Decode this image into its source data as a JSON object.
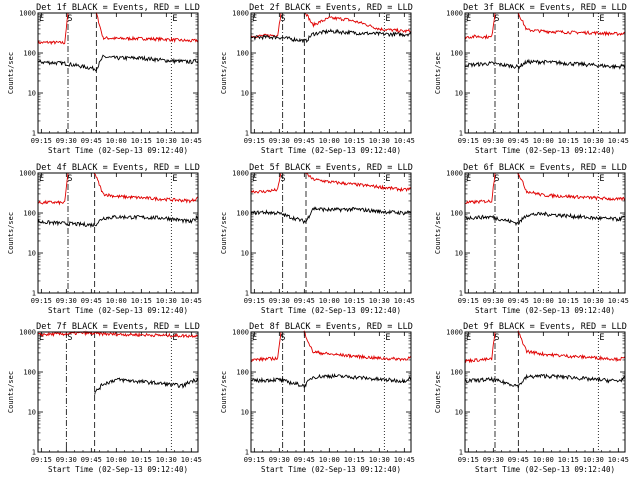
{
  "colors": {
    "background": "#ffffff",
    "axes": "#000000",
    "events": "#000000",
    "lld": "#e00000"
  },
  "chart_data": [
    {
      "type": "line",
      "title": "Det 1f BLACK = Events, RED = LLD",
      "xlabel": "Start Time (02-Sep-13 09:12:40)",
      "ylabel": "Counts/sec",
      "y_scale": "log",
      "ylim": [
        1,
        1000
      ],
      "yticks": [
        1,
        10,
        100,
        1000
      ],
      "xticks": [
        "09:15",
        "09:30",
        "09:45",
        "10:00",
        "10:15",
        "10:30",
        "10:45"
      ],
      "markers": [
        {
          "label": "E",
          "time": "09:13"
        },
        {
          "label": "S",
          "time": "09:30"
        },
        {
          "label": "E",
          "time": "10:33"
        }
      ],
      "flare_window": [
        "09:31",
        "09:48"
      ],
      "series": [
        {
          "color": "red",
          "x": [
            "09:13",
            "09:20",
            "09:29",
            "09:31",
            "09:48",
            "09:52",
            "10:00",
            "10:15",
            "10:30",
            "10:45",
            "10:49"
          ],
          "values": [
            180,
            185,
            180,
            1000,
            1000,
            240,
            230,
            230,
            220,
            200,
            210
          ]
        },
        {
          "color": "black",
          "x": [
            "09:13",
            "09:20",
            "09:29",
            "09:48",
            "09:52",
            "10:00",
            "10:15",
            "10:30",
            "10:45",
            "10:49"
          ],
          "values": [
            60,
            58,
            55,
            40,
            80,
            75,
            75,
            65,
            60,
            65
          ]
        }
      ]
    },
    {
      "type": "line",
      "title": "Det 2f BLACK = Events, RED = LLD",
      "xlabel": "Start Time (02-Sep-13 09:12:40)",
      "ylabel": "Counts/sec",
      "y_scale": "log",
      "ylim": [
        1,
        1000
      ],
      "yticks": [
        1,
        10,
        100,
        1000
      ],
      "xticks": [
        "09:15",
        "09:30",
        "09:45",
        "10:00",
        "10:15",
        "10:30",
        "10:45"
      ],
      "markers": [
        {
          "label": "E",
          "time": "09:13"
        },
        {
          "label": "S",
          "time": "09:30"
        },
        {
          "label": "E",
          "time": "10:33"
        }
      ],
      "flare_window": [
        "09:32",
        "09:45"
      ],
      "series": [
        {
          "color": "red",
          "x": [
            "09:13",
            "09:20",
            "09:29",
            "09:31",
            "09:46",
            "09:50",
            "10:00",
            "10:10",
            "10:20",
            "10:30",
            "10:45",
            "10:49"
          ],
          "values": [
            260,
            270,
            280,
            1000,
            1000,
            500,
            750,
            700,
            550,
            400,
            350,
            360
          ]
        },
        {
          "color": "black",
          "x": [
            "09:13",
            "09:20",
            "09:29",
            "09:46",
            "09:50",
            "10:00",
            "10:15",
            "10:30",
            "10:45",
            "10:49"
          ],
          "values": [
            240,
            250,
            250,
            200,
            300,
            350,
            320,
            300,
            290,
            310
          ]
        }
      ]
    },
    {
      "type": "line",
      "title": "Det 3f BLACK = Events, RED = LLD",
      "xlabel": "Start Time (02-Sep-13 09:12:40)",
      "ylabel": "Counts/sec",
      "y_scale": "log",
      "ylim": [
        1,
        1000
      ],
      "yticks": [
        1,
        10,
        100,
        1000
      ],
      "xticks": [
        "09:15",
        "09:30",
        "09:45",
        "10:00",
        "10:15",
        "10:30",
        "10:45"
      ],
      "markers": [
        {
          "label": "E",
          "time": "09:13"
        },
        {
          "label": "S",
          "time": "09:30"
        },
        {
          "label": "E",
          "time": "10:33"
        }
      ],
      "flare_window": [
        "09:31",
        "09:45"
      ],
      "series": [
        {
          "color": "red",
          "x": [
            "09:13",
            "09:20",
            "09:29",
            "09:31",
            "09:45",
            "09:50",
            "10:00",
            "10:15",
            "10:30",
            "10:45",
            "10:49"
          ],
          "values": [
            250,
            260,
            250,
            1000,
            1000,
            380,
            350,
            330,
            320,
            300,
            310
          ]
        },
        {
          "color": "black",
          "x": [
            "09:13",
            "09:20",
            "09:29",
            "09:45",
            "09:50",
            "10:00",
            "10:15",
            "10:30",
            "10:45",
            "10:49"
          ],
          "values": [
            50,
            52,
            55,
            45,
            60,
            60,
            55,
            50,
            45,
            50
          ]
        }
      ]
    },
    {
      "type": "line",
      "title": "Det 4f BLACK = Events, RED = LLD",
      "xlabel": "Start Time (02-Sep-13 09:12:40)",
      "ylabel": "Counts/sec",
      "y_scale": "log",
      "ylim": [
        1,
        1000
      ],
      "yticks": [
        1,
        10,
        100,
        1000
      ],
      "xticks": [
        "09:15",
        "09:30",
        "09:45",
        "10:00",
        "10:15",
        "10:30",
        "10:45"
      ],
      "markers": [
        {
          "label": "E",
          "time": "09:13"
        },
        {
          "label": "S",
          "time": "09:30"
        },
        {
          "label": "E",
          "time": "10:33"
        }
      ],
      "flare_window": [
        "09:31",
        "09:47"
      ],
      "series": [
        {
          "color": "red",
          "x": [
            "09:13",
            "09:20",
            "09:29",
            "09:31",
            "09:47",
            "09:52",
            "10:00",
            "10:15",
            "10:30",
            "10:45",
            "10:49"
          ],
          "values": [
            180,
            185,
            180,
            1000,
            1000,
            300,
            260,
            240,
            220,
            200,
            240
          ]
        },
        {
          "color": "black",
          "x": [
            "09:13",
            "09:20",
            "09:29",
            "09:47",
            "09:52",
            "10:00",
            "10:15",
            "10:30",
            "10:45",
            "10:49"
          ],
          "values": [
            60,
            58,
            55,
            50,
            75,
            80,
            78,
            75,
            60,
            80
          ]
        }
      ]
    },
    {
      "type": "line",
      "title": "Det 5f BLACK = Events, RED = LLD",
      "xlabel": "Start Time (02-Sep-13 09:12:40)",
      "ylabel": "Counts/sec",
      "y_scale": "log",
      "ylim": [
        1,
        1000
      ],
      "yticks": [
        1,
        10,
        100,
        1000
      ],
      "xticks": [
        "09:15",
        "09:30",
        "09:45",
        "10:00",
        "10:15",
        "10:30",
        "10:45"
      ],
      "markers": [
        {
          "label": "E",
          "time": "09:13"
        },
        {
          "label": "S",
          "time": "09:30"
        },
        {
          "label": "E",
          "time": "10:33"
        }
      ],
      "flare_window": [
        "09:32",
        "09:46"
      ],
      "series": [
        {
          "color": "red",
          "x": [
            "09:13",
            "09:20",
            "09:29",
            "09:31",
            "09:46",
            "09:50",
            "10:00",
            "10:15",
            "10:30",
            "10:45",
            "10:49"
          ],
          "values": [
            350,
            340,
            380,
            1000,
            1000,
            700,
            600,
            520,
            450,
            380,
            400
          ]
        },
        {
          "color": "black",
          "x": [
            "09:13",
            "09:20",
            "09:29",
            "09:46",
            "09:50",
            "10:00",
            "10:15",
            "10:30",
            "10:45",
            "10:49"
          ],
          "values": [
            100,
            105,
            100,
            60,
            130,
            120,
            125,
            110,
            100,
            110
          ]
        }
      ]
    },
    {
      "type": "line",
      "title": "Det 6f BLACK = Events, RED = LLD",
      "xlabel": "Start Time (02-Sep-13 09:12:40)",
      "ylabel": "Counts/sec",
      "y_scale": "log",
      "ylim": [
        1,
        1000
      ],
      "yticks": [
        1,
        10,
        100,
        1000
      ],
      "xticks": [
        "09:15",
        "09:30",
        "09:45",
        "10:00",
        "10:15",
        "10:30",
        "10:45"
      ],
      "markers": [
        {
          "label": "E",
          "time": "09:13"
        },
        {
          "label": "S",
          "time": "09:30"
        },
        {
          "label": "E",
          "time": "10:33"
        }
      ],
      "flare_window": [
        "09:31",
        "09:45"
      ],
      "series": [
        {
          "color": "red",
          "x": [
            "09:13",
            "09:20",
            "09:29",
            "09:31",
            "09:45",
            "09:50",
            "10:00",
            "10:15",
            "10:30",
            "10:45",
            "10:49"
          ],
          "values": [
            180,
            190,
            200,
            1000,
            1000,
            350,
            280,
            260,
            240,
            220,
            230
          ]
        },
        {
          "color": "black",
          "x": [
            "09:13",
            "09:20",
            "09:29",
            "09:45",
            "09:50",
            "10:00",
            "10:15",
            "10:30",
            "10:45",
            "10:49"
          ],
          "values": [
            75,
            78,
            80,
            55,
            90,
            95,
            85,
            75,
            70,
            80
          ]
        }
      ]
    },
    {
      "type": "line",
      "title": "Det 7f BLACK = Events, RED = LLD",
      "xlabel": "Start Time (02-Sep-13 09:12:40)",
      "ylabel": "Counts/sec",
      "y_scale": "log",
      "ylim": [
        1,
        1000
      ],
      "yticks": [
        1,
        10,
        100,
        1000
      ],
      "xticks": [
        "09:15",
        "09:30",
        "09:45",
        "10:00",
        "10:15",
        "10:30",
        "10:45"
      ],
      "markers": [
        {
          "label": "E",
          "time": "09:13"
        },
        {
          "label": "S",
          "time": "09:30"
        },
        {
          "label": "E",
          "time": "10:33"
        }
      ],
      "flare_window": [
        "09:30",
        "09:47"
      ],
      "series": [
        {
          "color": "red",
          "x": [
            "09:13",
            "09:20",
            "09:30",
            "09:40",
            "09:50",
            "10:00",
            "10:15",
            "10:30",
            "10:45",
            "10:49"
          ],
          "values": [
            850,
            880,
            900,
            950,
            900,
            880,
            850,
            820,
            800,
            830
          ]
        },
        {
          "color": "black",
          "x": [
            "09:13",
            "09:47",
            "09:52",
            "10:00",
            "10:10",
            "10:20",
            "10:30",
            "10:40",
            "10:45",
            "10:49"
          ],
          "values": [
            null,
            30,
            50,
            65,
            60,
            55,
            50,
            45,
            60,
            65
          ]
        }
      ]
    },
    {
      "type": "line",
      "title": "Det 8f BLACK = Events, RED = LLD",
      "xlabel": "Start Time (02-Sep-13 09:12:40)",
      "ylabel": "Counts/sec",
      "y_scale": "log",
      "ylim": [
        1,
        1000
      ],
      "yticks": [
        1,
        10,
        100,
        1000
      ],
      "xticks": [
        "09:15",
        "09:30",
        "09:45",
        "10:00",
        "10:15",
        "10:30",
        "10:45"
      ],
      "markers": [
        {
          "label": "E",
          "time": "09:13"
        },
        {
          "label": "S",
          "time": "09:30"
        },
        {
          "label": "E",
          "time": "10:33"
        }
      ],
      "flare_window": [
        "09:32",
        "09:45"
      ],
      "series": [
        {
          "color": "red",
          "x": [
            "09:13",
            "09:20",
            "09:29",
            "09:31",
            "09:45",
            "09:50",
            "10:00",
            "10:15",
            "10:30",
            "10:45",
            "10:49"
          ],
          "values": [
            200,
            210,
            220,
            1000,
            1000,
            320,
            280,
            250,
            220,
            210,
            230
          ]
        },
        {
          "color": "black",
          "x": [
            "09:13",
            "09:20",
            "09:29",
            "09:45",
            "09:50",
            "10:00",
            "10:15",
            "10:30",
            "10:45",
            "10:49"
          ],
          "values": [
            60,
            62,
            65,
            45,
            75,
            80,
            75,
            65,
            60,
            75
          ]
        }
      ]
    },
    {
      "type": "line",
      "title": "Det 9f BLACK = Events, RED = LLD",
      "xlabel": "Start Time (02-Sep-13 09:12:40)",
      "ylabel": "Counts/sec",
      "y_scale": "log",
      "ylim": [
        1,
        1000
      ],
      "yticks": [
        1,
        10,
        100,
        1000
      ],
      "xticks": [
        "09:15",
        "09:30",
        "09:45",
        "10:00",
        "10:15",
        "10:30",
        "10:45"
      ],
      "markers": [
        {
          "label": "E",
          "time": "09:13"
        },
        {
          "label": "S",
          "time": "09:30"
        },
        {
          "label": "E",
          "time": "10:33"
        }
      ],
      "flare_window": [
        "09:31",
        "09:45"
      ],
      "series": [
        {
          "color": "red",
          "x": [
            "09:13",
            "09:20",
            "09:29",
            "09:31",
            "09:45",
            "09:50",
            "10:00",
            "10:15",
            "10:30",
            "10:45",
            "10:49"
          ],
          "values": [
            190,
            200,
            210,
            1000,
            1000,
            330,
            280,
            250,
            230,
            210,
            220
          ]
        },
        {
          "color": "black",
          "x": [
            "09:13",
            "09:20",
            "09:29",
            "09:45",
            "09:50",
            "10:00",
            "10:15",
            "10:30",
            "10:45",
            "10:49"
          ],
          "values": [
            60,
            62,
            65,
            45,
            75,
            80,
            75,
            65,
            60,
            70
          ]
        }
      ]
    }
  ]
}
